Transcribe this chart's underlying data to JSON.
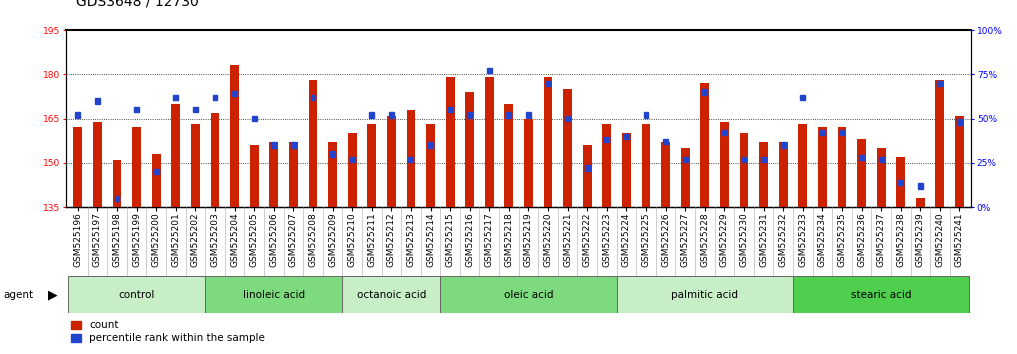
{
  "title": "GDS3648 / 12730",
  "samples": [
    "GSM525196",
    "GSM525197",
    "GSM525198",
    "GSM525199",
    "GSM525200",
    "GSM525201",
    "GSM525202",
    "GSM525203",
    "GSM525204",
    "GSM525205",
    "GSM525206",
    "GSM525207",
    "GSM525208",
    "GSM525209",
    "GSM525210",
    "GSM525211",
    "GSM525212",
    "GSM525213",
    "GSM525214",
    "GSM525215",
    "GSM525216",
    "GSM525217",
    "GSM525218",
    "GSM525219",
    "GSM525220",
    "GSM525221",
    "GSM525222",
    "GSM525223",
    "GSM525224",
    "GSM525225",
    "GSM525226",
    "GSM525227",
    "GSM525228",
    "GSM525229",
    "GSM525230",
    "GSM525231",
    "GSM525232",
    "GSM525233",
    "GSM525234",
    "GSM525235",
    "GSM525236",
    "GSM525237",
    "GSM525238",
    "GSM525239",
    "GSM525240",
    "GSM525241"
  ],
  "counts": [
    162,
    164,
    151,
    162,
    153,
    170,
    163,
    167,
    183,
    156,
    157,
    157,
    178,
    157,
    160,
    163,
    166,
    168,
    163,
    179,
    174,
    179,
    170,
    165,
    179,
    175,
    156,
    163,
    160,
    163,
    157,
    155,
    177,
    164,
    160,
    157,
    157,
    163,
    162,
    162,
    158,
    155,
    152,
    138,
    178,
    166
  ],
  "percentiles": [
    52,
    60,
    5,
    55,
    20,
    62,
    55,
    62,
    64,
    50,
    35,
    35,
    62,
    30,
    27,
    52,
    52,
    27,
    35,
    55,
    52,
    77,
    52,
    52,
    70,
    50,
    22,
    38,
    40,
    52,
    37,
    27,
    65,
    42,
    27,
    27,
    35,
    62,
    42,
    42,
    28,
    27,
    14,
    12,
    70,
    48
  ],
  "groups": [
    {
      "label": "control",
      "start": 0,
      "end": 6,
      "color": "#c8eec8"
    },
    {
      "label": "linoleic acid",
      "start": 7,
      "end": 13,
      "color": "#7eda7e"
    },
    {
      "label": "octanoic acid",
      "start": 14,
      "end": 18,
      "color": "#c8eec8"
    },
    {
      "label": "oleic acid",
      "start": 19,
      "end": 27,
      "color": "#7eda7e"
    },
    {
      "label": "palmitic acid",
      "start": 28,
      "end": 36,
      "color": "#c8eec8"
    },
    {
      "label": "stearic acid",
      "start": 37,
      "end": 45,
      "color": "#4ecf4e"
    }
  ],
  "ylim_left": [
    135,
    195
  ],
  "ylim_right": [
    0,
    100
  ],
  "yticks_left": [
    135,
    150,
    165,
    180,
    195
  ],
  "yticks_right": [
    0,
    25,
    50,
    75,
    100
  ],
  "bar_color": "#cc2200",
  "dot_color": "#2244cc",
  "bg_color": "#ffffff",
  "tick_bg_color": "#c8c8c8",
  "title_fontsize": 10,
  "tick_fontsize": 6.5,
  "label_fontsize": 7.5
}
